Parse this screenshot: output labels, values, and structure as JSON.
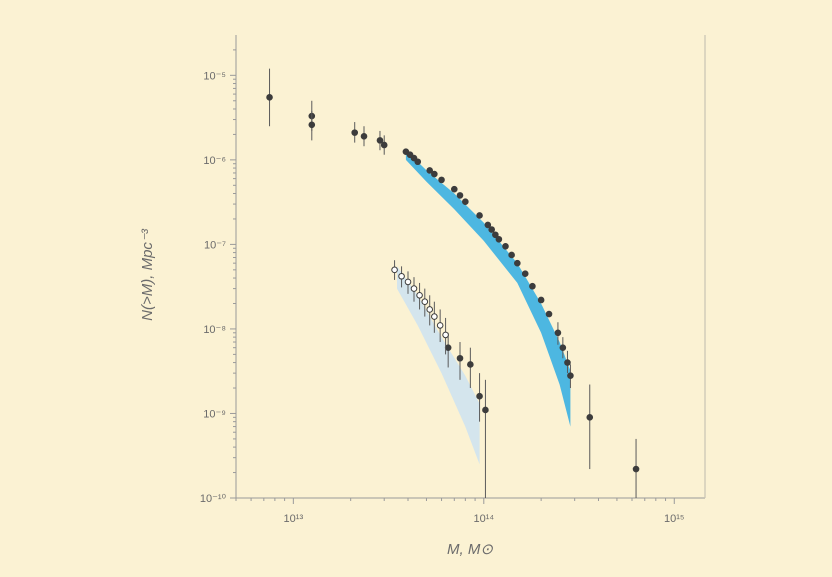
{
  "chart_data": {
    "type": "scatter",
    "title": "",
    "xlabel": "M, M⊙",
    "ylabel": "N(>M), Mpc⁻³",
    "x_scale": "log",
    "y_scale": "log",
    "xlim": [
      5000000000000.0,
      1450000000000000.0
    ],
    "ylim": [
      1e-10,
      3e-05
    ],
    "x_ticks": [
      {
        "value": 10000000000000.0,
        "label": "10¹³"
      },
      {
        "value": 100000000000000.0,
        "label": "10¹⁴"
      },
      {
        "value": 1000000000000000.0,
        "label": "10¹⁵"
      }
    ],
    "y_ticks": [
      {
        "value": 1e-05,
        "label": "10⁻⁵"
      },
      {
        "value": 1e-06,
        "label": "10⁻⁶"
      },
      {
        "value": 1e-07,
        "label": "10⁻⁷"
      },
      {
        "value": 1e-08,
        "label": "10⁻⁸"
      },
      {
        "value": 1e-09,
        "label": "10⁻⁹"
      },
      {
        "value": 1e-10,
        "label": "10⁻¹⁰"
      }
    ],
    "grid": false,
    "colors": {
      "background": "#fbf2d3",
      "band_upper": "#3ab0e2",
      "band_lower": "#cfe3ef",
      "points": "#3c3c3c",
      "axis": "#9a9a9a"
    },
    "bands": [
      {
        "x": [
          39000000000000.0,
          50000000000000.0,
          70000000000000.0,
          100000000000000.0,
          150000000000000.0,
          200000000000000.0,
          250000000000000.0,
          285000000000000.0
        ],
        "upper": [
          1.3e-06,
          7.5e-07,
          4e-07,
          1.8e-07,
          6e-08,
          2e-08,
          7e-09,
          3.2e-09
        ],
        "lower": [
          1e-06,
          5.5e-07,
          2.6e-07,
          1.1e-07,
          3.5e-08,
          9e-09,
          2.2e-09,
          7e-10
        ],
        "color": "#3ab0e2"
      },
      {
        "x": [
          35000000000000.0,
          45000000000000.0,
          60000000000000.0,
          80000000000000.0,
          95000000000000.0
        ],
        "upper": [
          5.5e-08,
          2.5e-08,
          8e-09,
          2.8e-09,
          1.3e-09
        ],
        "lower": [
          3e-08,
          1.1e-08,
          3e-09,
          7e-10,
          2.5e-10
        ],
        "color": "#cfe3ef"
      }
    ],
    "series": [
      {
        "filled": true,
        "points": [
          {
            "x": 7500000000000.0,
            "y": 5.5e-06,
            "lo": 2.5e-06,
            "hi": 1.2e-05
          },
          {
            "x": 12500000000000.0,
            "y": 3.3e-06,
            "lo": 2.2e-06,
            "hi": 5e-06
          },
          {
            "x": 12500000000000.0,
            "y": 2.6e-06,
            "lo": 1.7e-06,
            "hi": 3.8e-06
          },
          {
            "x": 21000000000000.0,
            "y": 2.1e-06,
            "lo": 1.6e-06,
            "hi": 2.8e-06
          },
          {
            "x": 23500000000000.0,
            "y": 1.9e-06,
            "lo": 1.45e-06,
            "hi": 2.5e-06
          },
          {
            "x": 28500000000000.0,
            "y": 1.7e-06,
            "lo": 1.3e-06,
            "hi": 2.2e-06
          },
          {
            "x": 30000000000000.0,
            "y": 1.5e-06,
            "lo": 1.15e-06,
            "hi": 1.95e-06
          },
          {
            "x": 39000000000000.0,
            "y": 1.25e-06
          },
          {
            "x": 41000000000000.0,
            "y": 1.15e-06
          },
          {
            "x": 43000000000000.0,
            "y": 1.05e-06
          },
          {
            "x": 45000000000000.0,
            "y": 9.5e-07
          },
          {
            "x": 52000000000000.0,
            "y": 7.5e-07
          },
          {
            "x": 55000000000000.0,
            "y": 6.8e-07
          },
          {
            "x": 60000000000000.0,
            "y": 5.8e-07
          },
          {
            "x": 70000000000000.0,
            "y": 4.5e-07
          },
          {
            "x": 75000000000000.0,
            "y": 3.8e-07
          },
          {
            "x": 80000000000000.0,
            "y": 3.2e-07
          },
          {
            "x": 95000000000000.0,
            "y": 2.2e-07
          },
          {
            "x": 105000000000000.0,
            "y": 1.7e-07
          },
          {
            "x": 110000000000000.0,
            "y": 1.5e-07
          },
          {
            "x": 115000000000000.0,
            "y": 1.3e-07
          },
          {
            "x": 120000000000000.0,
            "y": 1.15e-07
          },
          {
            "x": 130000000000000.0,
            "y": 9.5e-08
          },
          {
            "x": 140000000000000.0,
            "y": 7.5e-08
          },
          {
            "x": 150000000000000.0,
            "y": 6e-08
          },
          {
            "x": 165000000000000.0,
            "y": 4.5e-08
          },
          {
            "x": 180000000000000.0,
            "y": 3.2e-08
          },
          {
            "x": 200000000000000.0,
            "y": 2.2e-08
          },
          {
            "x": 220000000000000.0,
            "y": 1.5e-08
          },
          {
            "x": 245000000000000.0,
            "y": 9e-09,
            "lo": 6.5e-09,
            "hi": 1.2e-08
          },
          {
            "x": 260000000000000.0,
            "y": 6e-09,
            "lo": 4.5e-09,
            "hi": 8e-09
          },
          {
            "x": 275000000000000.0,
            "y": 4e-09,
            "lo": 3e-09,
            "hi": 5.5e-09
          },
          {
            "x": 285000000000000.0,
            "y": 2.8e-09,
            "lo": 2e-09,
            "hi": 3.8e-09
          },
          {
            "x": 360000000000000.0,
            "y": 9e-10,
            "lo": 2.2e-10,
            "hi": 2.2e-09
          },
          {
            "x": 630000000000000.0,
            "y": 2.2e-10,
            "lo": 1e-10,
            "hi": 5e-10
          },
          {
            "x": 65000000000000.0,
            "y": 6e-09,
            "lo": 3.5e-09,
            "hi": 9e-09
          },
          {
            "x": 75000000000000.0,
            "y": 4.5e-09,
            "lo": 2.5e-09,
            "hi": 7e-09
          },
          {
            "x": 85000000000000.0,
            "y": 3.8e-09,
            "lo": 2e-09,
            "hi": 6e-09
          },
          {
            "x": 95000000000000.0,
            "y": 1.6e-09,
            "lo": 8e-10,
            "hi": 3e-09
          },
          {
            "x": 102000000000000.0,
            "y": 1.1e-09,
            "lo": 1e-10,
            "hi": 2.5e-09
          }
        ]
      },
      {
        "filled": false,
        "points": [
          {
            "x": 34000000000000.0,
            "y": 5e-08,
            "lo": 3.8e-08,
            "hi": 6.5e-08
          },
          {
            "x": 37000000000000.0,
            "y": 4.2e-08,
            "lo": 3.1e-08,
            "hi": 5.5e-08
          },
          {
            "x": 40000000000000.0,
            "y": 3.6e-08,
            "lo": 2.6e-08,
            "hi": 4.8e-08
          },
          {
            "x": 43000000000000.0,
            "y": 3e-08,
            "lo": 2.1e-08,
            "hi": 4.1e-08
          },
          {
            "x": 46000000000000.0,
            "y": 2.5e-08,
            "lo": 1.7e-08,
            "hi": 3.5e-08
          },
          {
            "x": 49000000000000.0,
            "y": 2.1e-08,
            "lo": 1.4e-08,
            "hi": 3e-08
          },
          {
            "x": 52000000000000.0,
            "y": 1.7e-08,
            "lo": 1.1e-08,
            "hi": 2.5e-08
          },
          {
            "x": 55000000000000.0,
            "y": 1.4e-08,
            "lo": 9e-09,
            "hi": 2.1e-08
          },
          {
            "x": 59000000000000.0,
            "y": 1.1e-08,
            "lo": 7e-09,
            "hi": 1.7e-08
          },
          {
            "x": 63000000000000.0,
            "y": 8.5e-09,
            "lo": 5e-09,
            "hi": 1.35e-08
          }
        ]
      }
    ]
  }
}
